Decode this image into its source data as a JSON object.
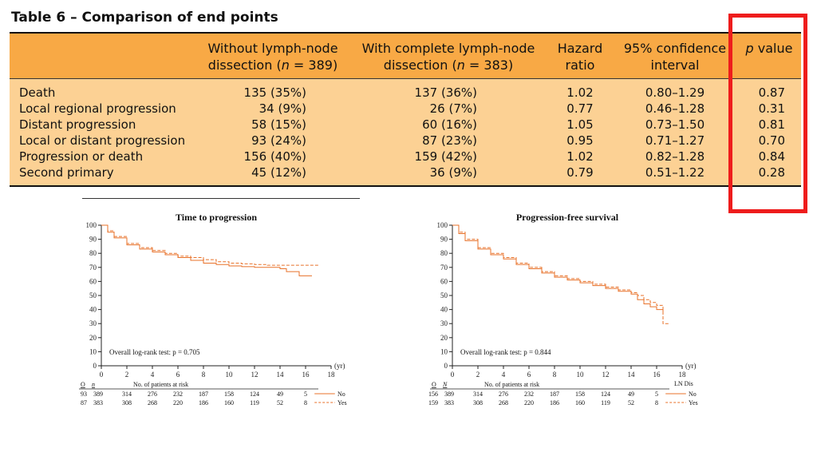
{
  "table": {
    "title": "Table 6 – Comparison of end points",
    "headers": {
      "without_l1": "Without lymph-node",
      "without_l2a": "dissection (",
      "without_n": "n",
      "without_l2b": " = 389)",
      "with_l1": "With complete lymph-node",
      "with_l2a": "dissection (",
      "with_n": "n",
      "with_l2b": " = 383)",
      "hr_l1": "Hazard",
      "hr_l2": "ratio",
      "ci_l1": "95% confidence",
      "ci_l2": "interval",
      "p_italic": "p",
      "p_rest": " value"
    },
    "rows": [
      {
        "label": "Death",
        "without": "135 (35%)",
        "with": "137 (36%)",
        "hr": "1.02",
        "ci": "0.80–1.29",
        "p": "0.87"
      },
      {
        "label": "Local regional progression",
        "without": "34 (9%)",
        "with": "26 (7%)",
        "hr": "0.77",
        "ci": "0.46–1.28",
        "p": "0.31"
      },
      {
        "label": "Distant progression",
        "without": "58 (15%)",
        "with": "60 (16%)",
        "hr": "1.05",
        "ci": "0.73–1.50",
        "p": "0.81"
      },
      {
        "label": "Local or distant progression",
        "without": "93 (24%)",
        "with": "87 (23%)",
        "hr": "0.95",
        "ci": "0.71–1.27",
        "p": "0.70"
      },
      {
        "label": "Progression or death",
        "without": "156 (40%)",
        "with": "159 (42%)",
        "hr": "1.02",
        "ci": "0.82–1.28",
        "p": "0.84"
      },
      {
        "label": "Second primary",
        "without": "45 (12%)",
        "with": "36 (9%)",
        "hr": "0.79",
        "ci": "0.51–1.22",
        "p": "0.28"
      }
    ]
  },
  "colors": {
    "header_bg": "#f8a945",
    "body_bg": "#fcd194",
    "highlight": "#ee1c1c",
    "curve": "#e8722a"
  },
  "chart_data": [
    {
      "type": "line",
      "title": "Time to progression",
      "xlabel": "(yr)",
      "xlim": [
        0,
        18
      ],
      "ylim": [
        0,
        100
      ],
      "x_ticks": [
        0,
        2,
        4,
        6,
        8,
        10,
        12,
        14,
        16,
        18
      ],
      "y_ticks": [
        0,
        10,
        20,
        30,
        40,
        50,
        60,
        70,
        80,
        90,
        100
      ],
      "annotation": "Overall log-rank test: p = 0.705",
      "series": [
        {
          "name": "No",
          "style": "solid",
          "x": [
            0,
            0.5,
            1,
            2,
            3,
            4,
            5,
            6,
            7,
            8,
            9,
            10,
            11,
            12,
            13,
            14,
            14.5,
            15,
            15.5,
            16,
            16.5
          ],
          "y": [
            100,
            95,
            91,
            86,
            83,
            81,
            79,
            77,
            75,
            73,
            72,
            71,
            70.5,
            70,
            70,
            69,
            67,
            67,
            64,
            64,
            64
          ]
        },
        {
          "name": "Yes",
          "style": "dashed",
          "x": [
            0,
            0.5,
            1,
            2,
            3,
            4,
            5,
            6,
            7,
            8,
            9,
            10,
            11,
            12,
            13,
            14,
            15,
            16,
            17
          ],
          "y": [
            100,
            96,
            92,
            87,
            84,
            82,
            80,
            78,
            77,
            75.5,
            74,
            73,
            72.5,
            72,
            71.5,
            71.5,
            71.5,
            71.5,
            71.5
          ]
        }
      ],
      "risk_table": {
        "header_O": "O",
        "header_n": "n",
        "caption": "No. of patients at risk",
        "legend_title": "",
        "rows": [
          {
            "O": "93",
            "n": "389",
            "values": [
              "314",
              "276",
              "232",
              "187",
              "158",
              "124",
              "49",
              "5"
            ],
            "label": "No"
          },
          {
            "O": "87",
            "n": "383",
            "values": [
              "308",
              "268",
              "220",
              "186",
              "160",
              "119",
              "52",
              "8"
            ],
            "label": "Yes"
          }
        ]
      }
    },
    {
      "type": "line",
      "title": "Progression-free survival",
      "xlabel": "(yr)",
      "xlim": [
        0,
        18
      ],
      "ylim": [
        0,
        100
      ],
      "x_ticks": [
        0,
        2,
        4,
        6,
        8,
        10,
        12,
        14,
        16,
        18
      ],
      "y_ticks": [
        0,
        10,
        20,
        30,
        40,
        50,
        60,
        70,
        80,
        90,
        100
      ],
      "annotation": "Overall log-rank test: p = 0.844",
      "series": [
        {
          "name": "No",
          "style": "solid",
          "x": [
            0,
            0.5,
            1,
            2,
            3,
            4,
            5,
            6,
            7,
            8,
            9,
            10,
            11,
            12,
            13,
            14,
            14.5,
            15,
            15.5,
            16,
            16.5
          ],
          "y": [
            100,
            94,
            89,
            83,
            79,
            76,
            72,
            69,
            66,
            63,
            61,
            59,
            57,
            55,
            53,
            51,
            47,
            44,
            42,
            40,
            38
          ]
        },
        {
          "name": "Yes",
          "style": "dashed",
          "x": [
            0,
            0.5,
            1,
            2,
            3,
            4,
            5,
            6,
            7,
            8,
            9,
            10,
            11,
            12,
            13,
            14,
            14.5,
            15,
            15.5,
            16,
            16.5,
            17
          ],
          "y": [
            100,
            95,
            90,
            84,
            80,
            77,
            73,
            70,
            67,
            64,
            62,
            60,
            58,
            56,
            54,
            52,
            50,
            47,
            45,
            43,
            30,
            30
          ]
        }
      ],
      "risk_table": {
        "header_O": "O",
        "header_n": "N",
        "caption": "No. of patients at risk",
        "legend_title": "LN Dis",
        "rows": [
          {
            "O": "156",
            "n": "389",
            "values": [
              "314",
              "276",
              "232",
              "187",
              "158",
              "124",
              "49",
              "5"
            ],
            "label": "No"
          },
          {
            "O": "159",
            "n": "383",
            "values": [
              "308",
              "268",
              "220",
              "186",
              "160",
              "119",
              "52",
              "8"
            ],
            "label": "Yes"
          }
        ]
      }
    }
  ]
}
